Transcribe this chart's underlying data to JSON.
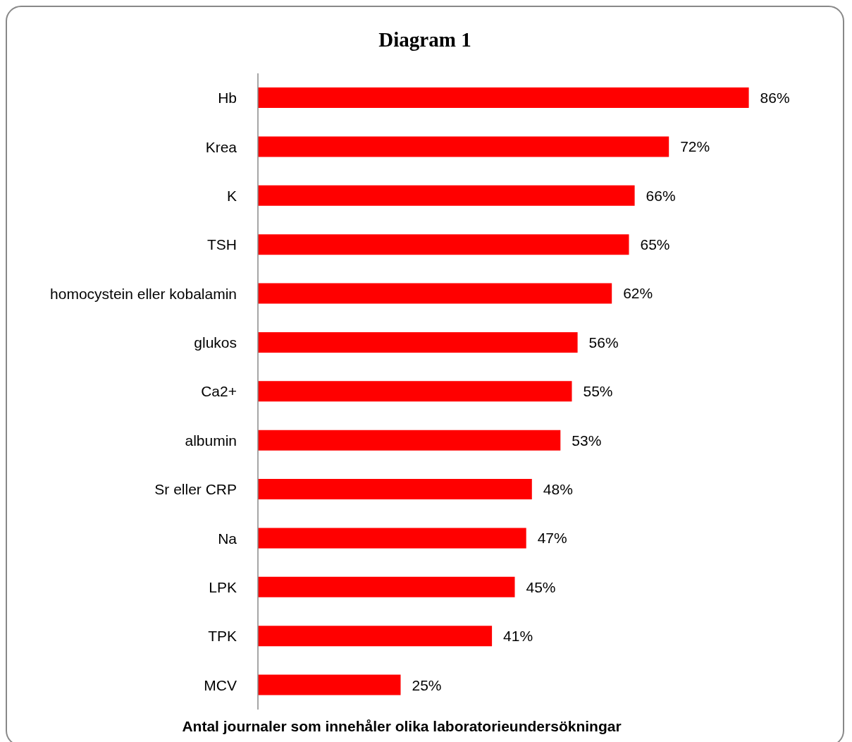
{
  "chart_data": {
    "type": "bar",
    "orientation": "horizontal",
    "title": "Diagram 1",
    "xlabel": "Antal journaler som innehåler olika laboratorieundersökningar",
    "categories": [
      "Hb",
      "Krea",
      "K",
      "TSH",
      "homocystein eller kobalamin",
      "glukos",
      "Ca2+",
      "albumin",
      "Sr eller CRP",
      "Na",
      "LPK",
      "TPK",
      "MCV"
    ],
    "values": [
      86,
      72,
      66,
      65,
      62,
      56,
      55,
      53,
      48,
      47,
      45,
      41,
      25
    ],
    "value_labels": [
      "86%",
      "72%",
      "66%",
      "65%",
      "62%",
      "56%",
      "55%",
      "53%",
      "48%",
      "47%",
      "45%",
      "41%",
      "25%"
    ],
    "color": "#ff0000",
    "tick_labels": "y"
  }
}
